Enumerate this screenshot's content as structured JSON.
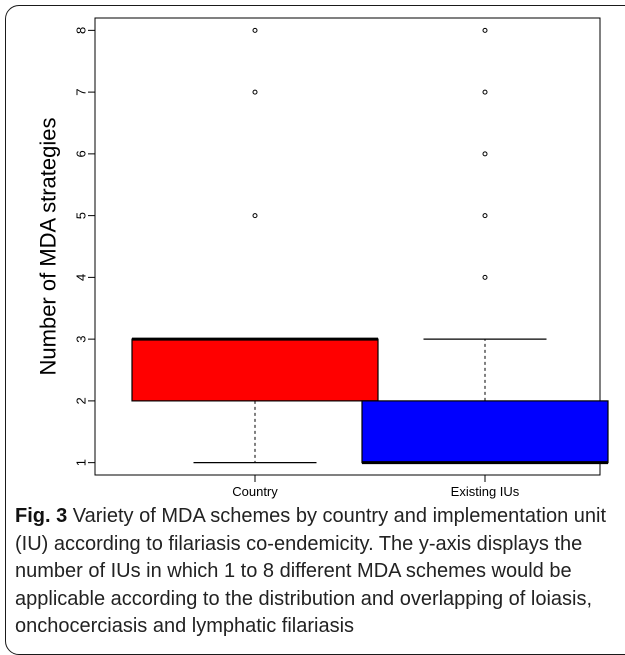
{
  "chart_data": {
    "type": "boxplot",
    "title": "",
    "xlabel": "",
    "ylabel": "Number of MDA strategies",
    "ylim": [
      0.8,
      8.2
    ],
    "y_ticks": [
      "1",
      "2",
      "3",
      "4",
      "5",
      "6",
      "7",
      "8"
    ],
    "categories": [
      "Country",
      "Existing IUs"
    ],
    "boxes": [
      {
        "category": "Country",
        "fill": "#ff0000",
        "whisker_low": 1,
        "q1": 2,
        "median": 3,
        "q3": 3,
        "whisker_high": 3,
        "outliers": [
          5,
          7,
          8
        ]
      },
      {
        "category": "Existing IUs",
        "fill": "#0000ff",
        "whisker_low": 1,
        "q1": 1,
        "median": 1,
        "q3": 2,
        "whisker_high": 3,
        "outliers": [
          4,
          5,
          6,
          7,
          8
        ]
      }
    ]
  },
  "caption": {
    "label": "Fig. 3",
    "text": " Variety of MDA schemes by country and implementation unit (IU) according to filariasis co-endemicity. The y-axis displays the number of IUs in which 1 to 8 different MDA schemes would be applicable according to the distribution and overlapping of loiasis, onchocerciasis and lymphatic filariasis"
  }
}
